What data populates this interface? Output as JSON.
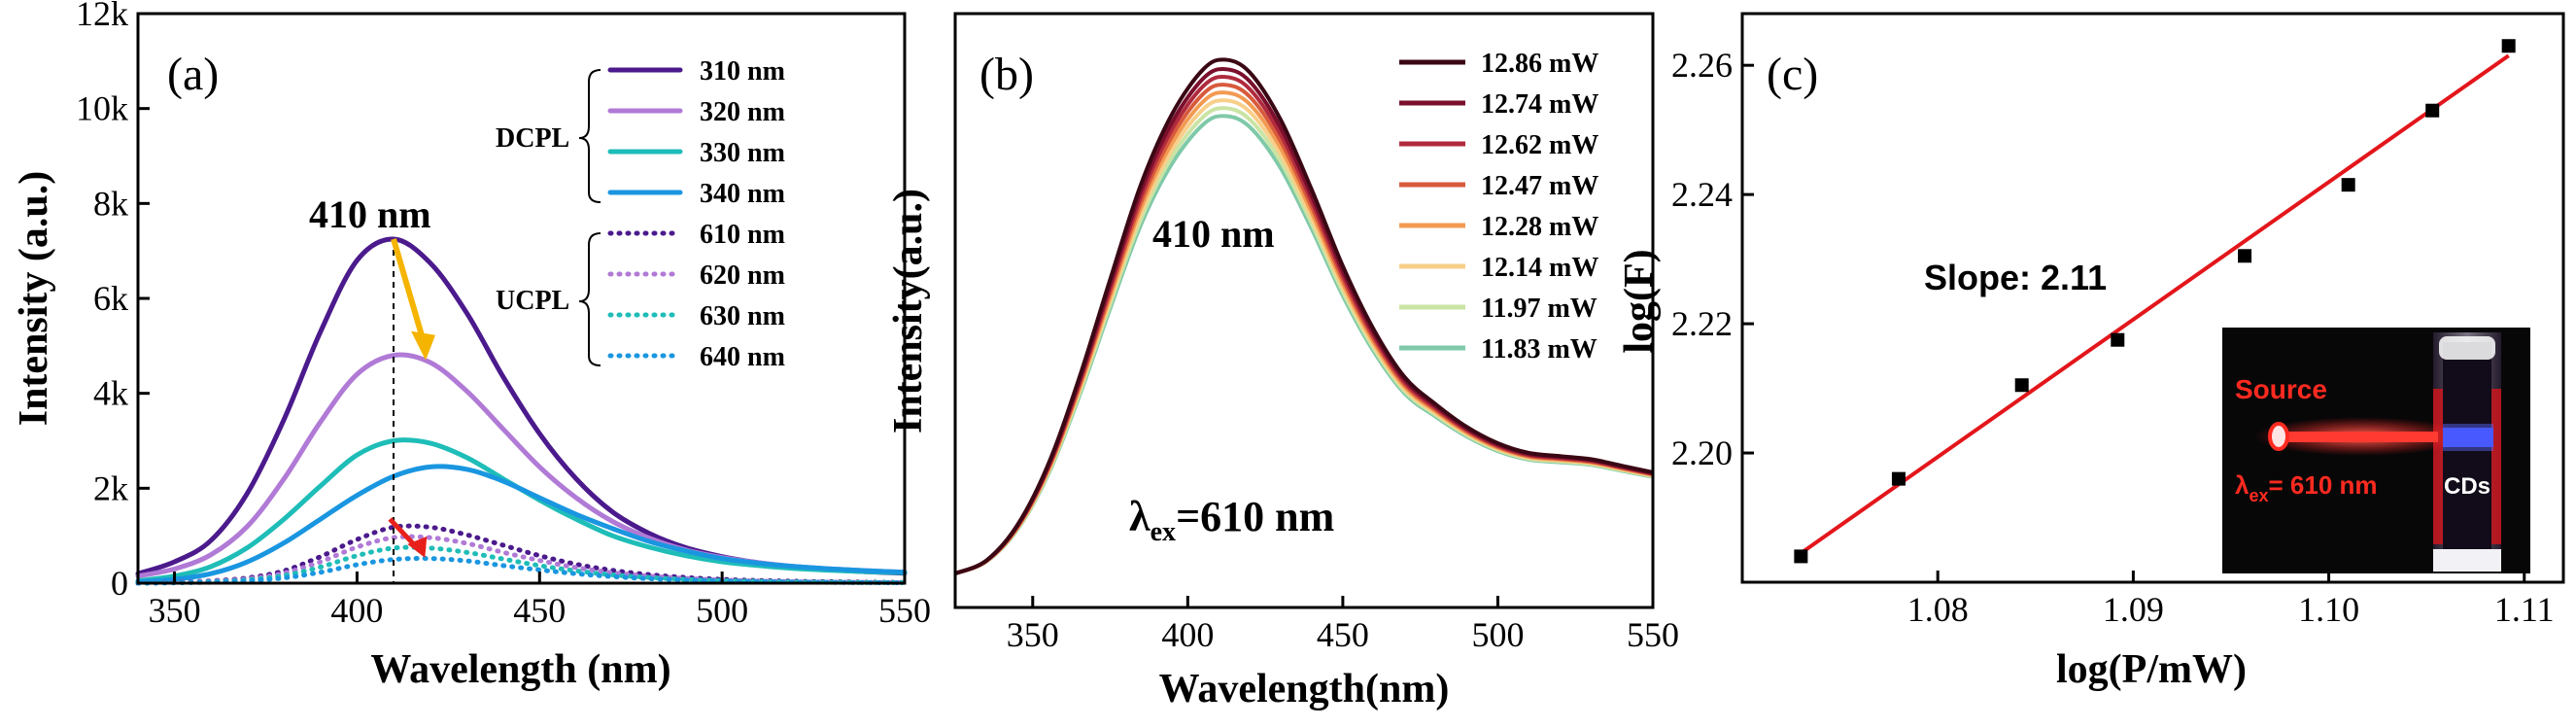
{
  "colors": {
    "p310": "#4b1a8c",
    "p320": "#b07ad6",
    "p330": "#1fbdb8",
    "p340": "#1a96e0",
    "peak_arrow": "#f5b400",
    "small_arrow": "#e8201b",
    "fit_line": "#e3161b",
    "b_series": [
      "#3a0814",
      "#7a0f2c",
      "#b02a3e",
      "#d85a3c",
      "#f39a52",
      "#f8cf8a",
      "#c9e4a4",
      "#7fc9a8"
    ]
  },
  "chart_data": [
    {
      "panel": "(a)",
      "type": "line",
      "xlabel": "Wavelength (nm)",
      "ylabel": "Intensity (a.u.)",
      "xlim": [
        340,
        550
      ],
      "ylim": [
        0,
        12000
      ],
      "xticks": [
        350,
        400,
        450,
        500,
        550
      ],
      "xtick_labels": [
        "350",
        "400",
        "450",
        "500",
        "550"
      ],
      "yticks": [
        0,
        2000,
        4000,
        6000,
        8000,
        10000,
        12000
      ],
      "ytick_labels": [
        "0",
        "2k",
        "4k",
        "6k",
        "8k",
        "10k",
        "12k"
      ],
      "annotation": "410 nm",
      "peak_marker_x": 410,
      "group_labels": [
        "DCPL",
        "UCPL"
      ],
      "x": [
        340,
        350,
        360,
        370,
        380,
        390,
        400,
        410,
        420,
        430,
        440,
        450,
        460,
        470,
        480,
        490,
        500,
        510,
        520,
        530,
        540,
        550
      ],
      "series": [
        {
          "name": "310 nm",
          "style": "solid",
          "color_key": "p310",
          "values": [
            200,
            450,
            900,
            1900,
            3450,
            5300,
            6800,
            7250,
            6750,
            5700,
            4350,
            3150,
            2200,
            1500,
            1050,
            750,
            560,
            430,
            340,
            280,
            240,
            210
          ]
        },
        {
          "name": "320 nm",
          "style": "solid",
          "color_key": "p320",
          "values": [
            150,
            300,
            600,
            1200,
            2200,
            3400,
            4400,
            4800,
            4650,
            4050,
            3250,
            2450,
            1800,
            1300,
            950,
            700,
            540,
            430,
            350,
            300,
            260,
            230
          ]
        },
        {
          "name": "330 nm",
          "style": "solid",
          "color_key": "p330",
          "values": [
            50,
            150,
            350,
            750,
            1350,
            2050,
            2700,
            3000,
            2950,
            2650,
            2200,
            1750,
            1350,
            1000,
            760,
            580,
            450,
            370,
            310,
            270,
            240,
            220
          ]
        },
        {
          "name": "340 nm",
          "style": "solid",
          "color_key": "p340",
          "values": [
            30,
            80,
            200,
            450,
            850,
            1350,
            1850,
            2250,
            2450,
            2400,
            2150,
            1800,
            1450,
            1150,
            880,
            680,
            520,
            420,
            350,
            300,
            260,
            230
          ]
        },
        {
          "name": "610 nm",
          "style": "dotted",
          "color_key": "p310",
          "values": [
            0,
            20,
            50,
            110,
            260,
            560,
            920,
            1180,
            1180,
            1020,
            800,
            580,
            400,
            270,
            180,
            120,
            80,
            55,
            40,
            30,
            20,
            15
          ]
        },
        {
          "name": "620 nm",
          "style": "dotted",
          "color_key": "p320",
          "values": [
            0,
            15,
            40,
            90,
            210,
            450,
            760,
            960,
            960,
            840,
            650,
            480,
            330,
            220,
            150,
            100,
            65,
            45,
            30,
            22,
            16,
            12
          ]
        },
        {
          "name": "630 nm",
          "style": "dotted",
          "color_key": "p330",
          "values": [
            0,
            10,
            30,
            70,
            160,
            340,
            580,
            740,
            740,
            650,
            510,
            370,
            260,
            175,
            120,
            80,
            55,
            38,
            26,
            18,
            13,
            10
          ]
        },
        {
          "name": "640 nm",
          "style": "dotted",
          "color_key": "p340",
          "values": [
            0,
            8,
            20,
            50,
            110,
            230,
            390,
            500,
            520,
            470,
            370,
            280,
            200,
            140,
            95,
            65,
            45,
            32,
            22,
            16,
            12,
            9
          ]
        }
      ]
    },
    {
      "panel": "(b)",
      "type": "line",
      "xlabel": "Wavelength(nm)",
      "ylabel": "Intensity(a.u.)",
      "xlim": [
        325,
        550
      ],
      "ylim": [
        0,
        1.7
      ],
      "xticks": [
        350,
        400,
        450,
        500,
        550
      ],
      "xtick_labels": [
        "350",
        "400",
        "450",
        "500",
        "550"
      ],
      "annotation_peak": "410 nm",
      "annotation_ex_prefix": "λ",
      "annotation_ex_sub": "ex",
      "annotation_ex_suffix": "=610 nm",
      "x": [
        325,
        335,
        345,
        355,
        365,
        375,
        385,
        395,
        405,
        412,
        420,
        430,
        440,
        450,
        460,
        470,
        480,
        490,
        500,
        510,
        520,
        530,
        540,
        550
      ],
      "series": [
        {
          "name": "12.86 mW",
          "peak": 1.0
        },
        {
          "name": "12.74 mW",
          "peak": 0.97
        },
        {
          "name": "12.62 mW",
          "peak": 0.945
        },
        {
          "name": "12.47 mW",
          "peak": 0.92
        },
        {
          "name": "12.28 mW",
          "peak": 0.895
        },
        {
          "name": "12.14 mW",
          "peak": 0.87
        },
        {
          "name": "11.97 mW",
          "peak": 0.845
        },
        {
          "name": "11.83 mW",
          "peak": 0.82
        }
      ],
      "base_shape": [
        0.0,
        0.02,
        0.08,
        0.18,
        0.33,
        0.52,
        0.72,
        0.88,
        0.98,
        1.0,
        0.97,
        0.86,
        0.7,
        0.53,
        0.39,
        0.29,
        0.22,
        0.17,
        0.14,
        0.12,
        0.11,
        0.1,
        0.09,
        0.08
      ],
      "tail": [
        0.0,
        0.02,
        0.07,
        0.16,
        0.28,
        0.4,
        0.5,
        0.56,
        0.6,
        0.61,
        0.6,
        0.56,
        0.5,
        0.43,
        0.37,
        0.32,
        0.29,
        0.27,
        0.25,
        0.24,
        0.24,
        0.24,
        0.23,
        0.22
      ]
    },
    {
      "panel": "(c)",
      "type": "scatter",
      "xlabel": "log(P/mW)",
      "ylabel": "log(F)",
      "xlim": [
        1.07,
        1.112
      ],
      "ylim": [
        2.18,
        2.268
      ],
      "xticks": [
        1.08,
        1.09,
        1.1,
        1.11
      ],
      "xtick_labels": [
        "1.08",
        "1.09",
        "1.10",
        "1.11"
      ],
      "yticks": [
        2.2,
        2.22,
        2.24,
        2.26
      ],
      "ytick_labels": [
        "2.20",
        "2.22",
        "2.24",
        "2.26"
      ],
      "annotation": "Slope: 2.11",
      "points": [
        {
          "x": 1.073,
          "y": 2.184
        },
        {
          "x": 1.078,
          "y": 2.196
        },
        {
          "x": 1.0843,
          "y": 2.2105
        },
        {
          "x": 1.0892,
          "y": 2.2175
        },
        {
          "x": 1.0957,
          "y": 2.2305
        },
        {
          "x": 1.101,
          "y": 2.2415
        },
        {
          "x": 1.1053,
          "y": 2.253
        },
        {
          "x": 1.1092,
          "y": 2.263
        }
      ],
      "fit": {
        "x0": 1.073,
        "y0": 2.1845,
        "x1": 1.1092,
        "y1": 2.2615
      },
      "inset": {
        "source_label": "Source",
        "ex_prefix": "λ",
        "ex_sub": "ex",
        "ex_suffix": "= 610 nm",
        "cds_label": "CDs"
      }
    }
  ]
}
